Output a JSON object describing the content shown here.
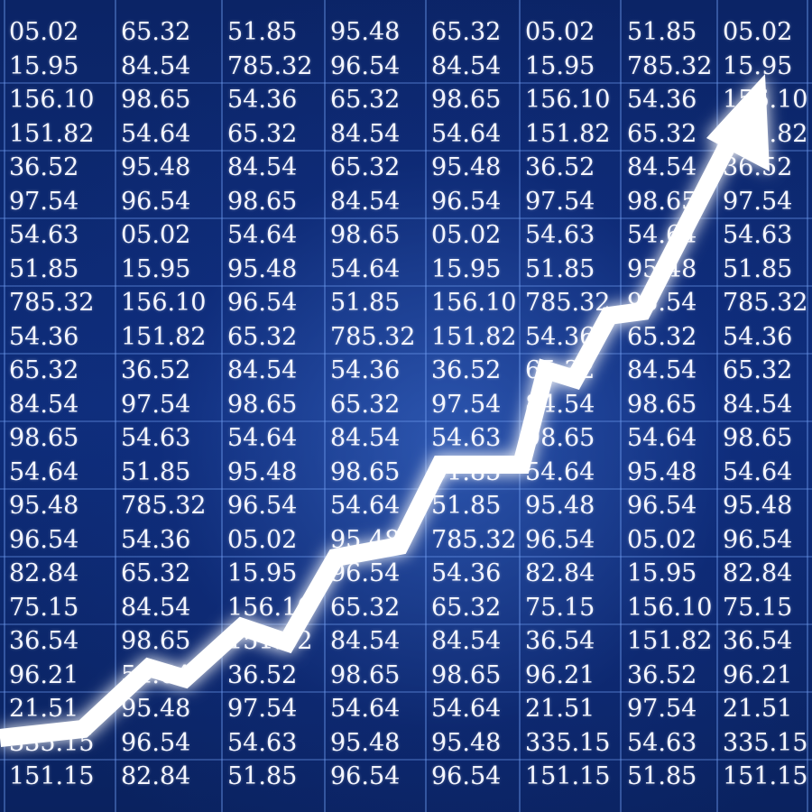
{
  "columns": [
    [
      "05.02",
      "15.95",
      "156.10",
      "151.82",
      "36.52",
      "97.54",
      "54.63",
      "51.85",
      "785.32",
      "54.36",
      "65.32",
      "84.54",
      "98.65",
      "54.64",
      "95.48",
      "96.54",
      "82.84",
      "75.15",
      "36.54",
      "96.21",
      "21.51",
      "335.15",
      "151.15"
    ],
    [
      "65.32",
      "84.54",
      "98.65",
      "54.64",
      "95.48",
      "96.54",
      "05.02",
      "15.95",
      "156.10",
      "151.82",
      "36.52",
      "97.54",
      "54.63",
      "51.85",
      "785.32",
      "54.36",
      "65.32",
      "84.54",
      "98.65",
      "54.64",
      "95.48",
      "96.54",
      "82.84"
    ],
    [
      "51.85",
      "785.32",
      "54.36",
      "65.32",
      "84.54",
      "98.65",
      "54.64",
      "95.48",
      "96.54",
      "65.32",
      "84.54",
      "98.65",
      "54.64",
      "95.48",
      "96.54",
      "05.02",
      "15.95",
      "156.10",
      "151.82",
      "36.52",
      "97.54",
      "54.63",
      "51.85"
    ],
    [
      "95.48",
      "96.54",
      "65.32",
      "84.54",
      "65.32",
      "84.54",
      "98.65",
      "54.64",
      "51.85",
      "785.32",
      "54.36",
      "65.32",
      "84.54",
      "98.65",
      "54.64",
      "95.48",
      "96.54",
      "65.32",
      "84.54",
      "98.65",
      "54.64",
      "95.48",
      "96.54"
    ],
    [
      "65.32",
      "84.54",
      "98.65",
      "54.64",
      "95.48",
      "96.54",
      "05.02",
      "15.95",
      "156.10",
      "151.82",
      "36.52",
      "97.54",
      "54.63",
      "51.85",
      "51.85",
      "785.32",
      "54.36",
      "65.32",
      "84.54",
      "98.65",
      "54.64",
      "95.48",
      "96.54"
    ],
    [
      "05.02",
      "15.95",
      "156.10",
      "151.82",
      "36.52",
      "97.54",
      "54.63",
      "51.85",
      "785.32",
      "54.36",
      "65.32",
      "84.54",
      "98.65",
      "54.64",
      "95.48",
      "96.54",
      "82.84",
      "75.15",
      "36.54",
      "96.21",
      "21.51",
      "335.15",
      "151.15"
    ],
    [
      "51.85",
      "785.32",
      "54.36",
      "65.32",
      "84.54",
      "98.65",
      "54.64",
      "95.48",
      "96.54",
      "65.32",
      "84.54",
      "98.65",
      "54.64",
      "95.48",
      "96.54",
      "05.02",
      "15.95",
      "156.10",
      "151.82",
      "36.52",
      "97.54",
      "54.63",
      "51.85"
    ],
    [
      "05.02",
      "15.95",
      "156.10",
      "151.82",
      "36.52",
      "97.54",
      "54.63",
      "51.85",
      "785.32",
      "54.36",
      "65.32",
      "84.54",
      "98.65",
      "54.64",
      "95.48",
      "96.54",
      "82.84",
      "75.15",
      "36.54",
      "96.21",
      "21.51",
      "335.15",
      "151.15"
    ]
  ],
  "colors": {
    "background": "#0b2466",
    "gridline": "#6f9cf0",
    "text": "#f4f6ff",
    "arrow": "#ffffff",
    "glow": "#9fc4ff"
  },
  "icons": {
    "arrow": "rising-trend-arrow-icon"
  }
}
